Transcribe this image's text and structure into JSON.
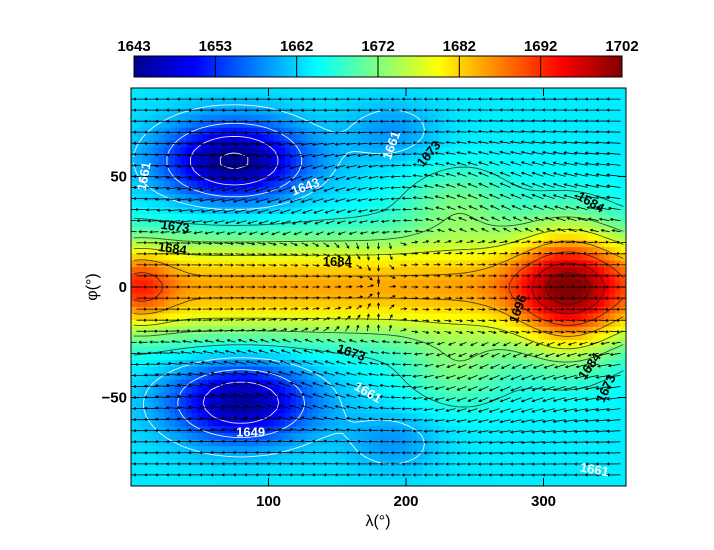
{
  "chart_data": {
    "type": "heatmap",
    "title": "",
    "xlabel": "λ(°)",
    "ylabel": "φ(°)",
    "xlim": [
      0,
      360
    ],
    "ylim": [
      -90,
      90
    ],
    "x_ticks": [
      100,
      200,
      300
    ],
    "y_ticks": [
      50,
      0,
      -50
    ],
    "x_tick_labels": [
      "100",
      "200",
      "300"
    ],
    "y_tick_labels": [
      "50",
      "0",
      "−50"
    ],
    "colorbar": {
      "orientation": "horizontal",
      "placement": "top",
      "min": 1643,
      "max": 1702,
      "tick_labels": [
        "1643",
        "1653",
        "1662",
        "1672",
        "1682",
        "1692",
        "1702"
      ],
      "colormap": [
        "#00008f",
        "#0000ff",
        "#0080ff",
        "#00ffff",
        "#80ff80",
        "#ffff00",
        "#ff8000",
        "#ff0000",
        "#800000"
      ]
    },
    "field_features": [
      {
        "kind": "low",
        "lon": 75,
        "lat": 57,
        "value": 1643
      },
      {
        "kind": "low",
        "lon": 78,
        "lat": -52,
        "value": 1649
      },
      {
        "kind": "high",
        "lon": 320,
        "lat": -2,
        "value": 1700
      },
      {
        "kind": "high",
        "lon": 5,
        "lat": 0,
        "value": 1692
      }
    ],
    "contour_labels": [
      {
        "text": "1661",
        "lon": 10,
        "lat": 50,
        "color": "#ffffff",
        "angle": -80
      },
      {
        "text": "1643",
        "lon": 127,
        "lat": 45,
        "color": "#ffffff",
        "angle": -20
      },
      {
        "text": "1661",
        "lon": 190,
        "lat": 64,
        "color": "#ffffff",
        "angle": -70
      },
      {
        "text": "1673",
        "lon": 217,
        "lat": 60,
        "color": "#000000",
        "angle": -50
      },
      {
        "text": "1673",
        "lon": 32,
        "lat": 27,
        "color": "#000000",
        "angle": 8
      },
      {
        "text": "1684",
        "lon": 30,
        "lat": 17,
        "color": "#000000",
        "angle": 8
      },
      {
        "text": "1684",
        "lon": 150,
        "lat": 11,
        "color": "#000000",
        "angle": 0
      },
      {
        "text": "1684",
        "lon": 334,
        "lat": 38,
        "color": "#000000",
        "angle": 30
      },
      {
        "text": "1696",
        "lon": 282,
        "lat": -10,
        "color": "#000000",
        "angle": -70
      },
      {
        "text": "1673",
        "lon": 160,
        "lat": -30,
        "color": "#000000",
        "angle": 18
      },
      {
        "text": "1661",
        "lon": 172,
        "lat": -48,
        "color": "#ffffff",
        "angle": 30
      },
      {
        "text": "1684",
        "lon": 334,
        "lat": -36,
        "color": "#000000",
        "angle": -55
      },
      {
        "text": "1673",
        "lon": 346,
        "lat": -46,
        "color": "#000000",
        "angle": -65
      },
      {
        "text": "1649",
        "lon": 87,
        "lat": -66,
        "color": "#ffffff",
        "angle": 0
      },
      {
        "text": "1661",
        "lon": 337,
        "lat": -83,
        "color": "#ffffff",
        "angle": 10
      }
    ],
    "wind_vectors": {
      "lat_step_deg": 5,
      "lon_step_deg": 8,
      "direction_note": "westward arrows at high latitudes, eastward arrows in the equatorial band"
    }
  }
}
